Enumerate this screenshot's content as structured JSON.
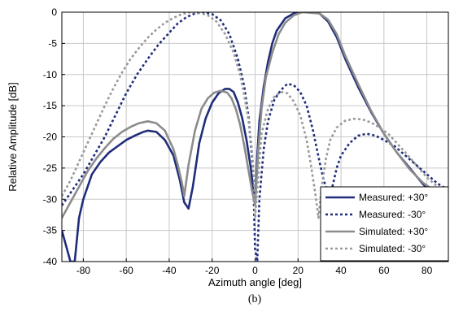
{
  "chart_data": {
    "type": "line",
    "xlabel": "Azimuth angle [deg]",
    "ylabel": "Relative Amplitude [dB]",
    "caption": "(b)",
    "xlim": [
      -90,
      90
    ],
    "ylim": [
      -40,
      0
    ],
    "xticks": [
      -80,
      -60,
      -40,
      -20,
      0,
      20,
      40,
      60,
      80
    ],
    "yticks": [
      0,
      -5,
      -10,
      -15,
      -20,
      -25,
      -30,
      -35,
      -40
    ],
    "grid": true,
    "legend_position": "bottom-right",
    "series": [
      {
        "name": "Measured: +30°",
        "color": "#1f2d7a",
        "style": "solid",
        "x": [
          -90,
          -88,
          -86,
          -84,
          -82,
          -80,
          -76,
          -72,
          -68,
          -64,
          -60,
          -56,
          -52,
          -50,
          -46,
          -42,
          -38,
          -35,
          -33,
          -31,
          -29,
          -26,
          -23,
          -20,
          -17,
          -14,
          -12,
          -10,
          -8,
          -6,
          -4,
          -2,
          -1,
          0,
          1,
          2,
          4,
          6,
          8,
          10,
          14,
          18,
          22,
          26,
          30,
          34,
          38,
          42,
          48,
          54,
          60,
          66,
          72,
          78,
          84,
          88,
          90
        ],
        "y": [
          -35,
          -37.5,
          -40,
          -40,
          -33,
          -30,
          -26,
          -24,
          -22.5,
          -21.5,
          -20.5,
          -19.8,
          -19.2,
          -19,
          -19.2,
          -20.5,
          -23,
          -27,
          -30.5,
          -31.5,
          -28,
          -21,
          -17,
          -14.5,
          -13,
          -12.3,
          -12.3,
          -12.8,
          -14.5,
          -17,
          -20.5,
          -25,
          -28,
          -31,
          -23,
          -17.5,
          -12,
          -8,
          -5,
          -3,
          -1,
          -0.2,
          0,
          0,
          -0.2,
          -1.5,
          -4,
          -7.5,
          -12,
          -16,
          -19.5,
          -22.5,
          -25,
          -27.5,
          -29.5,
          -30.5,
          -31
        ]
      },
      {
        "name": "Measured: -30°",
        "color": "#1f2d7a",
        "style": "dotted",
        "x": [
          -90,
          -85,
          -80,
          -75,
          -70,
          -65,
          -60,
          -55,
          -50,
          -45,
          -40,
          -36,
          -32,
          -28,
          -24,
          -20,
          -16,
          -12,
          -8,
          -5,
          -3,
          -1,
          0,
          1,
          2,
          4,
          6,
          9,
          12,
          15,
          18,
          21,
          24,
          27,
          30,
          32,
          34,
          36,
          38,
          40,
          44,
          48,
          52,
          56,
          60,
          65,
          70,
          75,
          80,
          85,
          90
        ],
        "y": [
          -31,
          -28.5,
          -26,
          -23,
          -20,
          -16.5,
          -13,
          -10,
          -7.5,
          -5.2,
          -3.3,
          -1.8,
          -0.8,
          -0.2,
          0,
          -0.3,
          -1.3,
          -3.5,
          -7.5,
          -12,
          -17,
          -25,
          -38,
          -40,
          -30,
          -22,
          -17.5,
          -14,
          -12.5,
          -11.5,
          -11.7,
          -12.8,
          -15,
          -19,
          -24,
          -27,
          -29,
          -28,
          -25,
          -23,
          -21,
          -19.8,
          -19.5,
          -19.8,
          -20.5,
          -21.5,
          -23,
          -24.5,
          -26,
          -27.5,
          -28.5
        ]
      },
      {
        "name": "Simulated: +30°",
        "color": "#8c8c8c",
        "style": "solid",
        "x": [
          -90,
          -86,
          -82,
          -78,
          -74,
          -70,
          -66,
          -62,
          -58,
          -54,
          -50,
          -46,
          -42,
          -38,
          -36,
          -34,
          -33,
          -31,
          -28,
          -25,
          -22,
          -19,
          -16,
          -13,
          -11,
          -9,
          -7,
          -5,
          -3,
          -1.5,
          0,
          1.5,
          3,
          5,
          8,
          11,
          14,
          18,
          22,
          26,
          30,
          34,
          38,
          42,
          48,
          54,
          60,
          66,
          72,
          78,
          84,
          88,
          90
        ],
        "y": [
          -33,
          -30.5,
          -28,
          -25.5,
          -23.5,
          -21.8,
          -20.3,
          -19.2,
          -18.4,
          -17.8,
          -17.5,
          -17.8,
          -19,
          -22,
          -24.5,
          -27.5,
          -29.5,
          -24.5,
          -19,
          -15.5,
          -13.8,
          -12.9,
          -12.6,
          -12.9,
          -13.8,
          -15.5,
          -18,
          -21.5,
          -25.5,
          -28.5,
          -31,
          -22,
          -15.5,
          -10.5,
          -6.5,
          -3.5,
          -1.7,
          -0.5,
          0,
          -0.1,
          -0.2,
          -1.2,
          -3.5,
          -7,
          -11.5,
          -15.8,
          -19.5,
          -22.5,
          -25.2,
          -27.3,
          -28.8,
          -29.6,
          -30
        ]
      },
      {
        "name": "Simulated: -30°",
        "color": "#9a9a9a",
        "style": "dotted",
        "x": [
          -90,
          -86,
          -82,
          -78,
          -74,
          -70,
          -66,
          -62,
          -58,
          -54,
          -50,
          -46,
          -42,
          -38,
          -34,
          -30,
          -26,
          -22,
          -18,
          -14,
          -10,
          -7,
          -5,
          -3,
          -1.5,
          -0.5,
          0,
          1.5,
          3,
          6,
          9,
          12,
          15,
          18,
          21,
          24,
          26,
          28,
          29.5,
          31,
          33,
          35,
          38,
          42,
          46,
          50,
          54,
          58,
          62,
          66,
          70,
          75,
          80,
          85,
          90
        ],
        "y": [
          -29.5,
          -27,
          -24,
          -21,
          -18,
          -15,
          -12.2,
          -9.7,
          -7.5,
          -5.7,
          -4.1,
          -2.8,
          -1.7,
          -0.9,
          -0.3,
          0,
          -0.1,
          -0.5,
          -1.5,
          -3.5,
          -6.5,
          -10,
          -13.5,
          -17.5,
          -22,
          -27,
          -33,
          -26,
          -19.5,
          -15.5,
          -13.5,
          -12.8,
          -13,
          -14.3,
          -16.5,
          -20.5,
          -24.5,
          -29,
          -33,
          -28,
          -23.5,
          -20.5,
          -18.5,
          -17.4,
          -17.1,
          -17.2,
          -17.7,
          -18.5,
          -19.5,
          -21,
          -22.5,
          -24.5,
          -26.5,
          -28,
          -29
        ]
      }
    ]
  }
}
